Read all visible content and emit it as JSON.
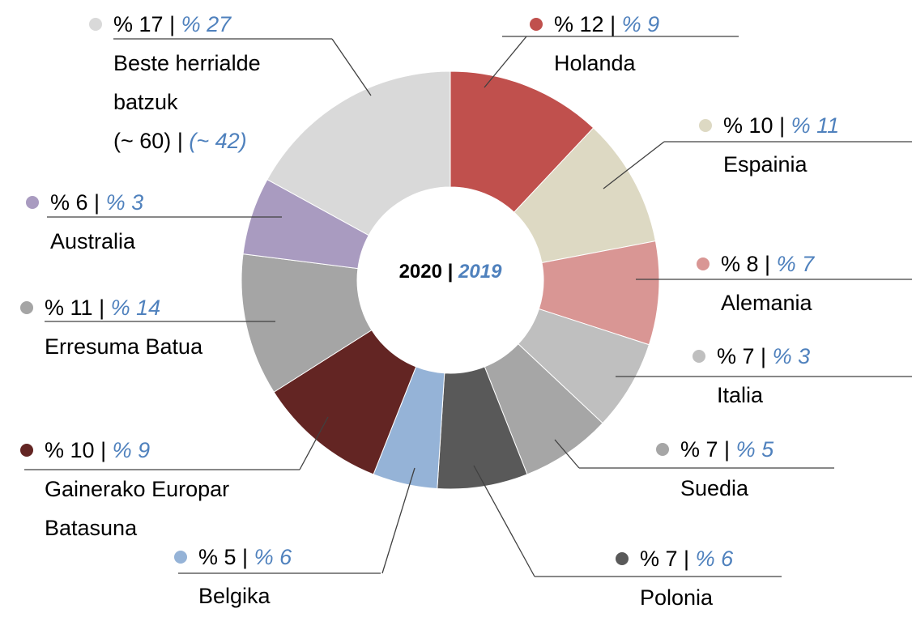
{
  "chart_data": {
    "type": "donut",
    "categories": [
      "Holanda",
      "Espainia",
      "Alemania",
      "Italia",
      "Suedia",
      "Polonia",
      "Belgika",
      "Gainerako Europar Batasuna",
      "Erresuma Batua",
      "Australia",
      "Beste herrialde batzuk"
    ],
    "colors": [
      "#c0504d",
      "#ddd9c3",
      "#d99694",
      "#bfbfbf",
      "#a6a6a6",
      "#595959",
      "#95b3d7",
      "#632523",
      "#a5a5a5",
      "#a99bc0",
      "#d9d9d9"
    ],
    "separator": "|",
    "series": [
      {
        "name": "2020",
        "values": [
          12,
          10,
          8,
          7,
          7,
          7,
          5,
          10,
          11,
          6,
          17
        ],
        "value_labels": [
          "% 12",
          "% 10",
          "% 8",
          "% 7",
          "% 7",
          "% 7",
          "% 5",
          "% 10",
          "% 11",
          "% 6",
          "% 17"
        ]
      },
      {
        "name": "2019",
        "values": [
          9,
          11,
          7,
          3,
          5,
          6,
          6,
          9,
          14,
          3,
          27
        ],
        "value_labels": [
          "% 9",
          "% 11",
          "% 7",
          "% 3",
          "% 5",
          "% 6",
          "% 6",
          "% 9",
          "% 14",
          "% 3",
          "% 27"
        ]
      }
    ],
    "other_count_labels": [
      "(~ 60)",
      "(~ 42)"
    ]
  }
}
